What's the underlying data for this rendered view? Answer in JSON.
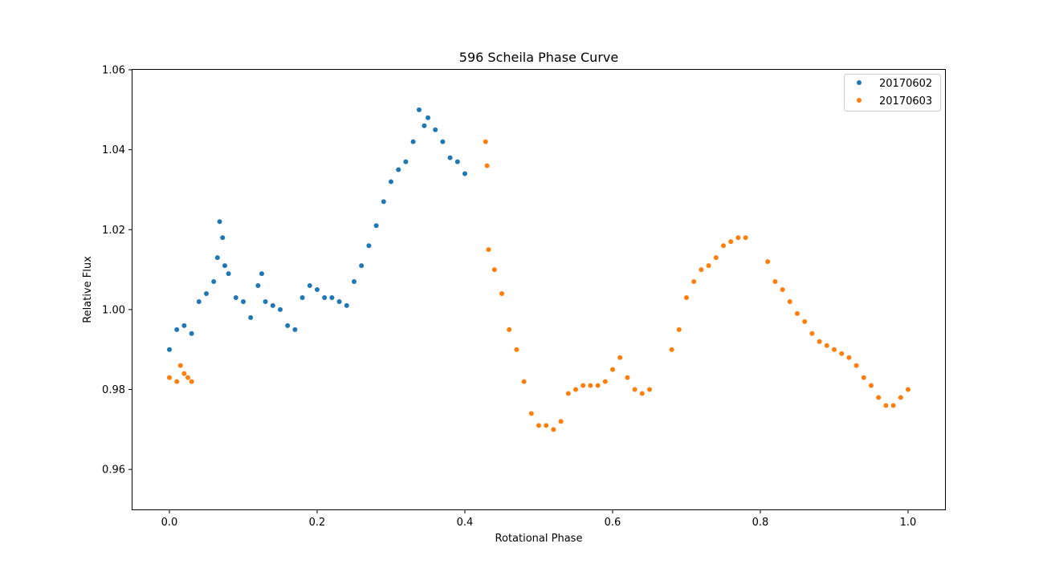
{
  "chart_data": {
    "type": "scatter",
    "title": "596 Scheila Phase Curve",
    "xlabel": "Rotational Phase",
    "ylabel": "Relative Flux",
    "xlim": [
      -0.05,
      1.05
    ],
    "ylim": [
      0.95,
      1.06
    ],
    "xticks": [
      0.0,
      0.2,
      0.4,
      0.6,
      0.8,
      1.0
    ],
    "xtick_labels": [
      "0.0",
      "0.2",
      "0.4",
      "0.6",
      "0.8",
      "1.0"
    ],
    "yticks": [
      0.96,
      0.98,
      1.0,
      1.02,
      1.04,
      1.06
    ],
    "ytick_labels": [
      "0.96",
      "0.98",
      "1.00",
      "1.02",
      "1.04",
      "1.06"
    ],
    "grid": false,
    "legend_position": "top-right",
    "series": [
      {
        "name": "20170602",
        "color": "#1f77b4",
        "x": [
          0.0,
          0.01,
          0.02,
          0.03,
          0.04,
          0.05,
          0.06,
          0.065,
          0.068,
          0.072,
          0.075,
          0.08,
          0.09,
          0.1,
          0.11,
          0.12,
          0.125,
          0.13,
          0.14,
          0.15,
          0.16,
          0.17,
          0.18,
          0.19,
          0.2,
          0.21,
          0.22,
          0.23,
          0.24,
          0.25,
          0.26,
          0.27,
          0.28,
          0.29,
          0.3,
          0.31,
          0.32,
          0.33,
          0.338,
          0.345,
          0.35,
          0.36,
          0.37,
          0.38,
          0.39,
          0.4
        ],
        "y": [
          0.99,
          0.995,
          0.996,
          0.994,
          1.002,
          1.004,
          1.007,
          1.013,
          1.022,
          1.018,
          1.011,
          1.009,
          1.003,
          1.002,
          0.998,
          1.006,
          1.009,
          1.002,
          1.001,
          1.0,
          0.996,
          0.995,
          1.003,
          1.006,
          1.005,
          1.003,
          1.003,
          1.002,
          1.001,
          1.007,
          1.011,
          1.016,
          1.021,
          1.027,
          1.032,
          1.035,
          1.037,
          1.042,
          1.05,
          1.046,
          1.048,
          1.045,
          1.042,
          1.038,
          1.037,
          1.034
        ]
      },
      {
        "name": "20170603",
        "color": "#ff7f0e",
        "x": [
          0.0,
          0.01,
          0.015,
          0.02,
          0.025,
          0.03,
          0.428,
          0.43,
          0.432,
          0.44,
          0.45,
          0.46,
          0.47,
          0.48,
          0.49,
          0.5,
          0.51,
          0.52,
          0.53,
          0.54,
          0.55,
          0.56,
          0.57,
          0.58,
          0.59,
          0.6,
          0.61,
          0.62,
          0.63,
          0.64,
          0.65,
          0.68,
          0.69,
          0.7,
          0.71,
          0.72,
          0.73,
          0.74,
          0.75,
          0.76,
          0.77,
          0.78,
          0.81,
          0.82,
          0.83,
          0.84,
          0.85,
          0.86,
          0.87,
          0.88,
          0.89,
          0.9,
          0.91,
          0.92,
          0.93,
          0.94,
          0.95,
          0.96,
          0.97,
          0.98,
          0.99,
          1.0
        ],
        "y": [
          0.983,
          0.982,
          0.986,
          0.984,
          0.983,
          0.982,
          1.042,
          1.036,
          1.015,
          1.01,
          1.004,
          0.995,
          0.99,
          0.982,
          0.974,
          0.971,
          0.971,
          0.97,
          0.972,
          0.979,
          0.98,
          0.981,
          0.981,
          0.981,
          0.982,
          0.985,
          0.988,
          0.983,
          0.98,
          0.979,
          0.98,
          0.99,
          0.995,
          1.003,
          1.007,
          1.01,
          1.011,
          1.013,
          1.016,
          1.017,
          1.018,
          1.018,
          1.012,
          1.007,
          1.005,
          1.002,
          0.999,
          0.997,
          0.994,
          0.992,
          0.991,
          0.99,
          0.989,
          0.988,
          0.986,
          0.983,
          0.981,
          0.978,
          0.976,
          0.976,
          0.978,
          0.98
        ]
      }
    ]
  }
}
